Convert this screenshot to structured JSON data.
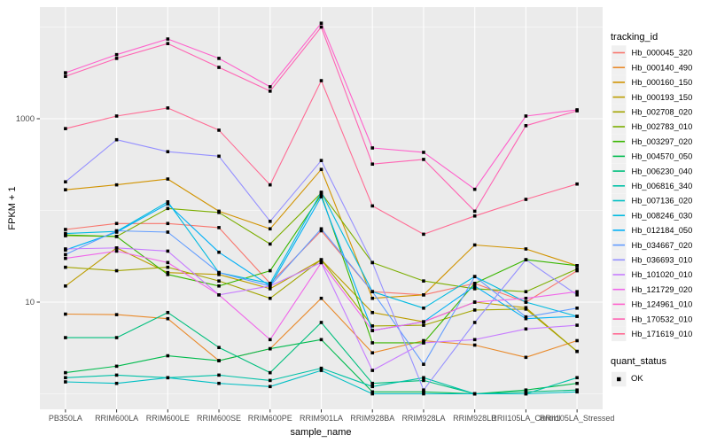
{
  "chart_data": {
    "type": "line",
    "title": "",
    "xlabel": "sample_name",
    "ylabel": "FPKM + 1",
    "y_scale": "log10",
    "y_tick_labels": [
      "1000",
      "10"
    ],
    "y_ticks": [
      1000,
      10
    ],
    "y_minor_gridlines": [
      1,
      100,
      10000
    ],
    "ylim": [
      0.68,
      16500
    ],
    "grid": true,
    "panel_background": "#EBEBEB",
    "gridline_color": "#FFFFFF",
    "point_color": "#000000",
    "tick_label_color": "#4D4D4D",
    "legend_position": "right",
    "categories": [
      "PB350LA",
      "RRIM600LA",
      "RRIM600LE",
      "RRIM600SE",
      "RRIM600PE",
      "RRIM901LA",
      "RRIM928BA",
      "RRIM928LA",
      "RRIM928LB",
      "RRII105LA_Control",
      "RRII105LA_Stressed"
    ],
    "series": [
      {
        "name": "Hb_000045_320",
        "color": "#F8766D",
        "values": [
          62,
          72,
          72,
          65,
          16,
          60,
          13,
          12,
          16,
          10,
          22
        ]
      },
      {
        "name": "Hb_000140_490",
        "color": "#E98A2B",
        "values": [
          7.4,
          7.3,
          6.6,
          2.3,
          3.1,
          11,
          2.8,
          3.8,
          3.4,
          2.5,
          3.8
        ]
      },
      {
        "name": "Hb_000160_150",
        "color": "#D19300",
        "values": [
          168,
          190,
          220,
          98,
          63,
          280,
          11,
          12,
          42,
          38,
          25
        ]
      },
      {
        "name": "Hb_000193_150",
        "color": "#BC9D00",
        "values": [
          15,
          39,
          21,
          20,
          14,
          29,
          7.7,
          6.1,
          10,
          8.7,
          2.9
        ]
      },
      {
        "name": "Hb_002708_020",
        "color": "#A3A500",
        "values": [
          24,
          22,
          24,
          17,
          11,
          29,
          5.5,
          5.6,
          8.2,
          8.4,
          2.9
        ]
      },
      {
        "name": "Hb_002783_010",
        "color": "#7CAE00",
        "values": [
          53,
          52,
          105,
          95,
          43,
          155,
          27,
          17,
          14,
          13,
          23
        ]
      },
      {
        "name": "Hb_003297_020",
        "color": "#39B600",
        "values": [
          54,
          52,
          20,
          15,
          22,
          148,
          3.6,
          3.6,
          16,
          29,
          25
        ]
      },
      {
        "name": "Hb_004570_050",
        "color": "#00BB4E",
        "values": [
          1.7,
          2.0,
          2.6,
          2.3,
          3.1,
          3.9,
          1.05,
          1.05,
          1.0,
          1.1,
          1.3
        ]
      },
      {
        "name": "Hb_006230_040",
        "color": "#00BF7D",
        "values": [
          4.1,
          4.1,
          7.7,
          3.2,
          1.7,
          6.0,
          1.3,
          1.4,
          1.0,
          1.05,
          1.1
        ]
      },
      {
        "name": "Hb_006816_340",
        "color": "#00C1A7",
        "values": [
          1.5,
          1.6,
          1.5,
          1.6,
          1.4,
          1.9,
          1.2,
          1.5,
          1.0,
          1.0,
          1.5
        ]
      },
      {
        "name": "Hb_007136_020",
        "color": "#00BFC4",
        "values": [
          1.35,
          1.3,
          1.5,
          1.3,
          1.2,
          1.8,
          1.0,
          1.0,
          1.0,
          1.0,
          1.05
        ]
      },
      {
        "name": "Hb_008246_030",
        "color": "#00BAE0",
        "values": [
          56,
          59,
          124,
          21,
          16,
          158,
          13,
          8.6,
          19,
          10,
          7.0
        ]
      },
      {
        "name": "Hb_012184_050",
        "color": "#00B0F6",
        "values": [
          37,
          58,
          118,
          35,
          15,
          141,
          4.9,
          6.1,
          15,
          6.6,
          7.0
        ]
      },
      {
        "name": "Hb_034667_020",
        "color": "#619CFF",
        "values": [
          33,
          60,
          58,
          21,
          15,
          63,
          13,
          2.1,
          19,
          6.9,
          8.6
        ]
      },
      {
        "name": "Hb_036693_010",
        "color": "#9590FF",
        "values": [
          205,
          590,
          437,
          390,
          76,
          350,
          27,
          1.1,
          6.0,
          29,
          12
        ]
      },
      {
        "name": "Hb_101020_010",
        "color": "#C77CFF",
        "values": [
          38,
          39,
          36,
          12,
          15,
          27,
          1.8,
          3.6,
          3.9,
          5.1,
          5.6
        ]
      },
      {
        "name": "Hb_121729_020",
        "color": "#F066EA",
        "values": [
          30,
          36,
          27,
          12,
          3.9,
          27,
          4.9,
          6.1,
          10,
          11,
          13
        ]
      },
      {
        "name": "Hb_124961_010",
        "color": "#FF61CC",
        "values": [
          3170,
          5000,
          7400,
          4550,
          2230,
          11000,
          480,
          430,
          170,
          1070,
          1250
        ]
      },
      {
        "name": "Hb_170532_010",
        "color": "#FF64B3",
        "values": [
          2900,
          4550,
          6600,
          3630,
          2000,
          10000,
          320,
          360,
          98,
          840,
          1220
        ]
      },
      {
        "name": "Hb_171619_010",
        "color": "#FF6B94",
        "values": [
          780,
          1070,
          1310,
          750,
          190,
          2600,
          112,
          55,
          87,
          132,
          194
        ]
      }
    ],
    "legend": {
      "tracking_title": "tracking_id",
      "quant_title": "quant_status",
      "quant_items": [
        {
          "label": "OK"
        }
      ]
    }
  }
}
